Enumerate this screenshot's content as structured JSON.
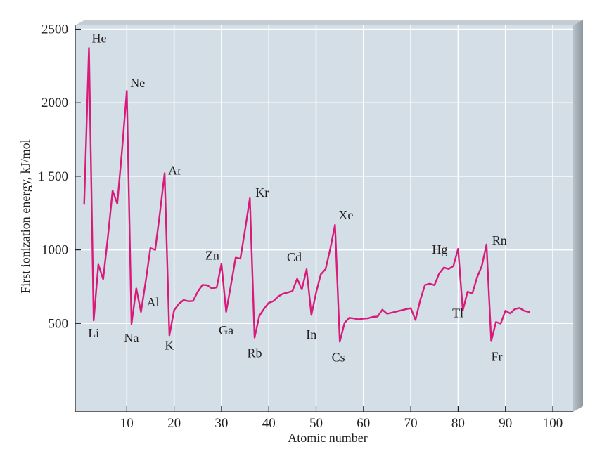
{
  "chart_data": {
    "type": "line",
    "title": "",
    "xlabel": "Atomic number",
    "ylabel": "First ionization energy, kJ/mol",
    "xlim": [
      0,
      100
    ],
    "ylim": [
      0,
      2500
    ],
    "x_ticks": [
      10,
      20,
      30,
      40,
      50,
      60,
      70,
      80,
      90,
      100
    ],
    "y_ticks": [
      500,
      1000,
      1500,
      2000,
      2500
    ],
    "y_tick_labels": [
      "500",
      "1000",
      "1 500",
      "2000",
      "2500"
    ],
    "grid": true,
    "colors": {
      "line": "#d81b7a",
      "plot_bg": "#d4dee6",
      "grid": "#ffffff",
      "frame_shadow": "#9aa4ab",
      "text": "#231f20"
    },
    "series": [
      {
        "x": [
          1,
          2,
          3,
          4,
          5,
          6,
          7,
          8,
          9,
          10,
          11,
          12,
          13,
          14,
          15,
          16,
          17,
          18,
          19,
          20,
          21,
          22,
          23,
          24,
          25,
          26,
          27,
          28,
          29,
          30,
          31,
          32,
          33,
          34,
          35,
          36,
          37,
          38,
          39,
          40,
          41,
          42,
          43,
          44,
          45,
          46,
          47,
          48,
          49,
          50,
          51,
          52,
          53,
          54,
          55,
          56,
          57,
          58,
          59,
          60,
          61,
          62,
          63,
          64,
          65,
          66,
          67,
          68,
          69,
          70,
          71,
          72,
          73,
          74,
          75,
          76,
          77,
          78,
          79,
          80,
          81,
          82,
          83,
          84,
          85,
          86,
          87,
          88,
          89,
          90,
          91,
          92,
          93,
          94,
          95
        ],
        "y": [
          1312,
          2372,
          520,
          900,
          801,
          1086,
          1402,
          1314,
          1681,
          2081,
          496,
          738,
          578,
          786,
          1012,
          1000,
          1251,
          1521,
          419,
          590,
          633,
          659,
          651,
          653,
          717,
          762,
          760,
          737,
          745,
          906,
          579,
          762,
          947,
          941,
          1140,
          1351,
          403,
          550,
          600,
          640,
          652,
          684,
          702,
          710,
          720,
          804,
          731,
          868,
          558,
          709,
          834,
          869,
          1008,
          1170,
          376,
          503,
          538,
          534,
          527,
          533,
          535,
          545,
          547,
          593,
          566,
          573,
          581,
          589,
          597,
          603,
          524,
          659,
          761,
          770,
          760,
          840,
          880,
          870,
          890,
          1007,
          589,
          716,
          703,
          812,
          890,
          1037,
          380,
          509,
          499,
          587,
          568,
          598,
          605,
          585,
          578
        ]
      }
    ],
    "annotations": [
      {
        "label": "He",
        "z": 2
      },
      {
        "label": "Ne",
        "z": 10
      },
      {
        "label": "Ar",
        "z": 18
      },
      {
        "label": "Kr",
        "z": 36
      },
      {
        "label": "Xe",
        "z": 54
      },
      {
        "label": "Hg",
        "z": 80
      },
      {
        "label": "Rn",
        "z": 86
      },
      {
        "label": "Zn",
        "z": 30
      },
      {
        "label": "Cd",
        "z": 48
      },
      {
        "label": "Li",
        "z": 3
      },
      {
        "label": "Na",
        "z": 11
      },
      {
        "label": "Al",
        "z": 13
      },
      {
        "label": "K",
        "z": 19
      },
      {
        "label": "Ga",
        "z": 31
      },
      {
        "label": "Rb",
        "z": 37
      },
      {
        "label": "In",
        "z": 49
      },
      {
        "label": "Cs",
        "z": 55
      },
      {
        "label": "Tl",
        "z": 81
      },
      {
        "label": "Fr",
        "z": 87
      }
    ]
  }
}
